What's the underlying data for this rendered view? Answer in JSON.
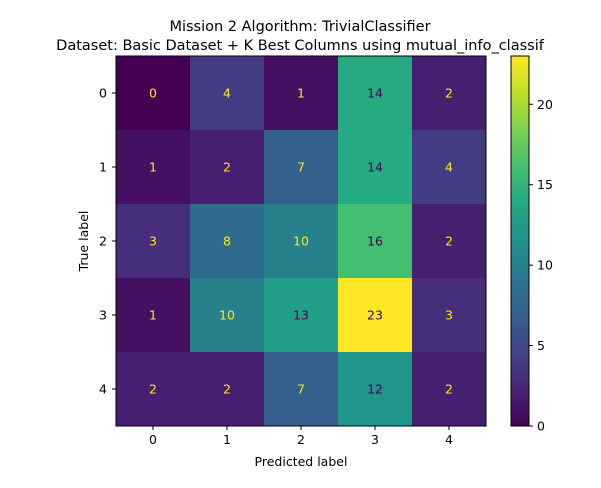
{
  "chart_data": {
    "type": "heatmap",
    "title_line1": "Mission 2 Algorithm: TrivialClassifier",
    "title_line2": "Dataset: Basic Dataset + K Best Columns using mutual_info_classif",
    "xlabel": "Predicted label",
    "ylabel": "True label",
    "x_ticks": [
      "0",
      "1",
      "2",
      "3",
      "4"
    ],
    "y_ticks": [
      "0",
      "1",
      "2",
      "3",
      "4"
    ],
    "matrix": [
      [
        0,
        4,
        1,
        14,
        2
      ],
      [
        1,
        2,
        7,
        14,
        4
      ],
      [
        3,
        8,
        10,
        16,
        2
      ],
      [
        1,
        10,
        13,
        23,
        3
      ],
      [
        2,
        2,
        7,
        12,
        2
      ]
    ],
    "colorbar_ticks": [
      "0",
      "5",
      "10",
      "15",
      "20"
    ],
    "colorbar_range": [
      0,
      23
    ],
    "colormap": "viridis"
  }
}
